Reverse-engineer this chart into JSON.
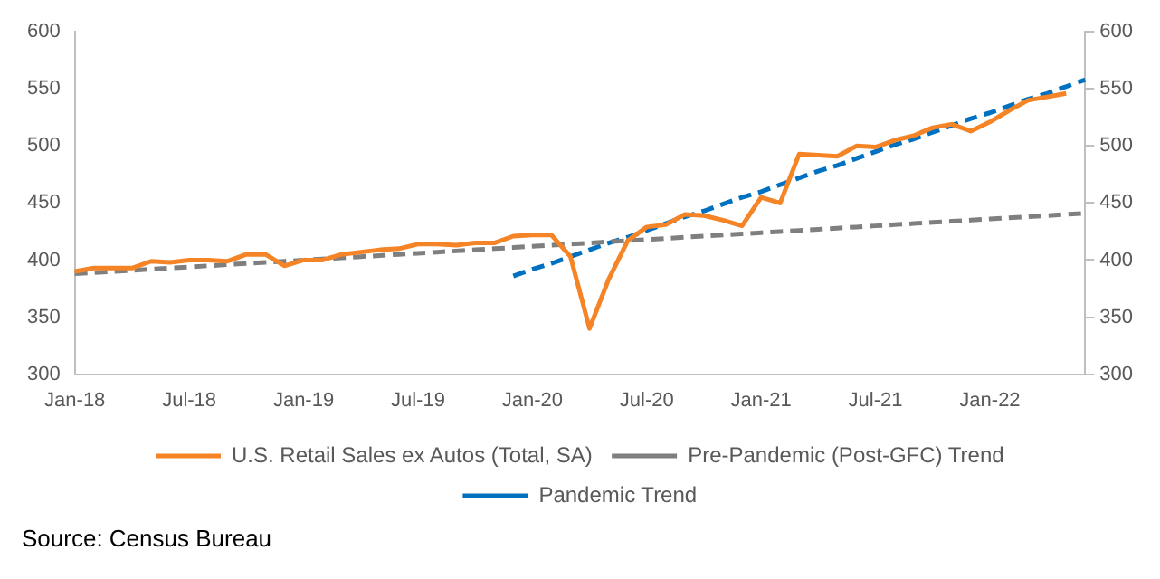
{
  "chart_data": {
    "type": "line",
    "categories": [
      "Jan-18",
      null,
      null,
      null,
      null,
      null,
      "Jul-18",
      null,
      null,
      null,
      null,
      null,
      "Jan-19",
      null,
      null,
      null,
      null,
      null,
      "Jul-19",
      null,
      null,
      null,
      null,
      null,
      "Jan-20",
      null,
      null,
      null,
      null,
      null,
      "Jul-20",
      null,
      null,
      null,
      null,
      null,
      "Jan-21",
      null,
      null,
      null,
      null,
      null,
      "Jul-21",
      null,
      null,
      null,
      null,
      null,
      "Jan-22",
      null,
      null,
      null,
      null,
      null
    ],
    "series": [
      {
        "name": "U.S. Retail Sales ex Autos (Total, SA)",
        "color": "#f58426",
        "line_style": "solid",
        "values": [
          390,
          393,
          393,
          393,
          399,
          398,
          400,
          400,
          399,
          405,
          405,
          395,
          400,
          400,
          405,
          407,
          409,
          410,
          414,
          414,
          413,
          415,
          415,
          421,
          422,
          422,
          403,
          340,
          383,
          417,
          429,
          431,
          440,
          439,
          435,
          430,
          455,
          450,
          493,
          492,
          491,
          500,
          499,
          505,
          509,
          516,
          519,
          513,
          521,
          531,
          540,
          543,
          546,
          null
        ]
      },
      {
        "name": "Pre-Pandemic (Post-GFC) Trend",
        "color": "#7f7f7f",
        "line_style": "dashed",
        "values": [
          388,
          389,
          390,
          391,
          392,
          393,
          394,
          395,
          396,
          397,
          398,
          399,
          400,
          401,
          402,
          403,
          404,
          405,
          406,
          407,
          408,
          409,
          410,
          411,
          412,
          413,
          414,
          415,
          416,
          417,
          418,
          419,
          420,
          421,
          422,
          423,
          424,
          425,
          426,
          427,
          428,
          429,
          430,
          431,
          432,
          433,
          434,
          435,
          436,
          437,
          438,
          439,
          440,
          441
        ]
      },
      {
        "name": "Pandemic Trend",
        "color": "#0070c0",
        "line_style": "dashed",
        "values": [
          null,
          null,
          null,
          null,
          null,
          null,
          null,
          null,
          null,
          null,
          null,
          null,
          null,
          null,
          null,
          null,
          null,
          null,
          null,
          null,
          null,
          null,
          null,
          386,
          392,
          397,
          403,
          409,
          415,
          420,
          426,
          432,
          438,
          443,
          449,
          455,
          460,
          466,
          472,
          478,
          483,
          489,
          495,
          501,
          506,
          512,
          518,
          524,
          529,
          535,
          541,
          546,
          552,
          558
        ]
      }
    ],
    "ylim": [
      300,
      600
    ],
    "yticks": [
      300,
      350,
      400,
      450,
      500,
      550,
      600
    ],
    "y2lim": [
      300,
      600
    ],
    "y2ticks": [
      300,
      350,
      400,
      450,
      500,
      550,
      600
    ],
    "legend": "bottom",
    "grid": false,
    "marker": "none",
    "annotations": [
      "Source: Census Bureau"
    ]
  }
}
